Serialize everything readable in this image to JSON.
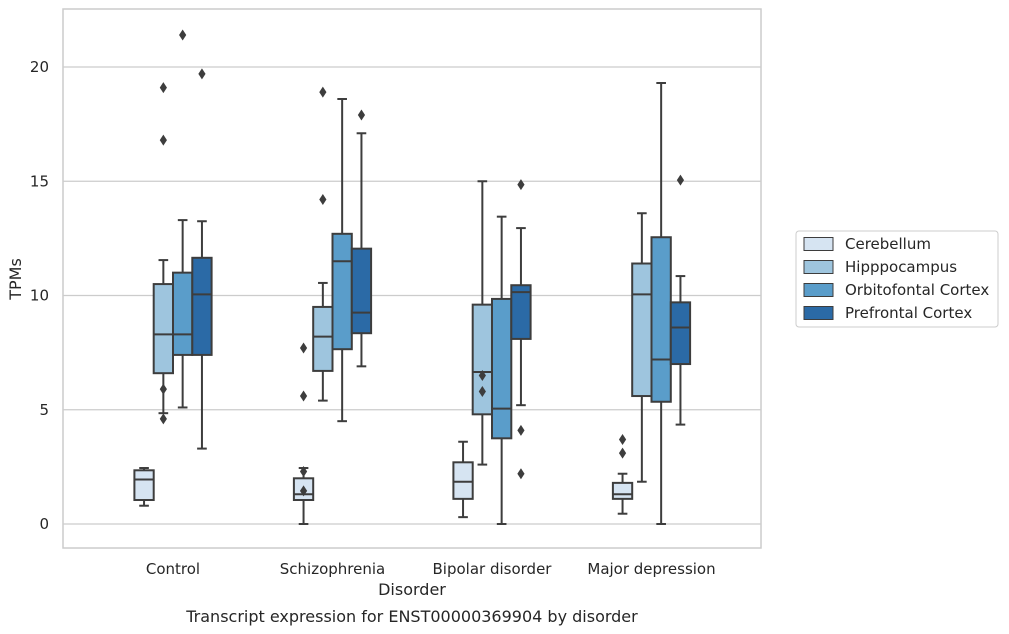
{
  "chart_data": {
    "type": "box",
    "caption": "Transcript expression for ENST00000369904 by disorder",
    "xlabel": "Disorder",
    "ylabel": "TPMs",
    "ylim": [
      -1,
      22.5
    ],
    "yticks": [
      "0",
      "5",
      "10",
      "15",
      "20"
    ],
    "grid": "horizontal",
    "legend_position": "right",
    "categories": [
      "Control",
      "Schizophrenia",
      "Bipolar disorder",
      "Major depression"
    ],
    "series": [
      {
        "name": "Cerebellum",
        "color": "#d6e4f2",
        "boxes": [
          {
            "whislo": 0.8,
            "q1": 1.05,
            "med": 1.95,
            "q3": 2.35,
            "whishi": 2.45,
            "fliers": []
          },
          {
            "whislo": 0.0,
            "q1": 1.05,
            "med": 1.3,
            "q3": 2.0,
            "whishi": 2.45,
            "fliers": [
              7.7,
              5.6,
              2.3,
              1.45
            ]
          },
          {
            "whislo": 0.3,
            "q1": 1.1,
            "med": 1.85,
            "q3": 2.7,
            "whishi": 3.6,
            "fliers": []
          },
          {
            "whislo": 0.45,
            "q1": 1.1,
            "med": 1.3,
            "q3": 1.8,
            "whishi": 2.2,
            "fliers": [
              3.7,
              3.1
            ]
          }
        ]
      },
      {
        "name": "Hipppocampus",
        "color": "#9ec5de",
        "boxes": [
          {
            "whislo": 4.85,
            "q1": 6.6,
            "med": 8.3,
            "q3": 10.5,
            "whishi": 11.55,
            "fliers": [
              5.9,
              4.6,
              19.1,
              16.8
            ]
          },
          {
            "whislo": 5.4,
            "q1": 6.7,
            "med": 8.2,
            "q3": 9.5,
            "whishi": 10.55,
            "fliers": [
              14.2,
              18.9
            ]
          },
          {
            "whislo": 2.6,
            "q1": 4.8,
            "med": 6.65,
            "q3": 9.6,
            "whishi": 15.0,
            "fliers": [
              6.5,
              5.8
            ]
          },
          {
            "whislo": 1.85,
            "q1": 5.6,
            "med": 10.05,
            "q3": 11.4,
            "whishi": 13.6,
            "fliers": []
          }
        ]
      },
      {
        "name": "Orbitofontal Cortex",
        "color": "#5a9dca",
        "boxes": [
          {
            "whislo": 5.1,
            "q1": 7.4,
            "med": 8.3,
            "q3": 11.0,
            "whishi": 13.3,
            "fliers": [
              21.4
            ]
          },
          {
            "whislo": 4.5,
            "q1": 7.65,
            "med": 11.5,
            "q3": 12.7,
            "whishi": 18.6,
            "fliers": []
          },
          {
            "whislo": 0.0,
            "q1": 3.75,
            "med": 5.05,
            "q3": 9.85,
            "whishi": 13.45,
            "fliers": []
          },
          {
            "whislo": 0.0,
            "q1": 5.35,
            "med": 7.2,
            "q3": 12.55,
            "whishi": 19.3,
            "fliers": []
          }
        ]
      },
      {
        "name": "Prefrontal Cortex",
        "color": "#2b6aa6",
        "boxes": [
          {
            "whislo": 3.3,
            "q1": 7.4,
            "med": 10.05,
            "q3": 11.65,
            "whishi": 13.25,
            "fliers": [
              19.7
            ]
          },
          {
            "whislo": 6.9,
            "q1": 8.35,
            "med": 9.25,
            "q3": 12.05,
            "whishi": 17.1,
            "fliers": [
              17.9
            ]
          },
          {
            "whislo": 5.2,
            "q1": 8.1,
            "med": 10.15,
            "q3": 10.45,
            "whishi": 12.95,
            "fliers": [
              14.85,
              4.1,
              2.2
            ]
          },
          {
            "whislo": 4.35,
            "q1": 7.0,
            "med": 8.6,
            "q3": 9.7,
            "whishi": 10.85,
            "fliers": [
              15.05
            ]
          }
        ]
      }
    ]
  }
}
